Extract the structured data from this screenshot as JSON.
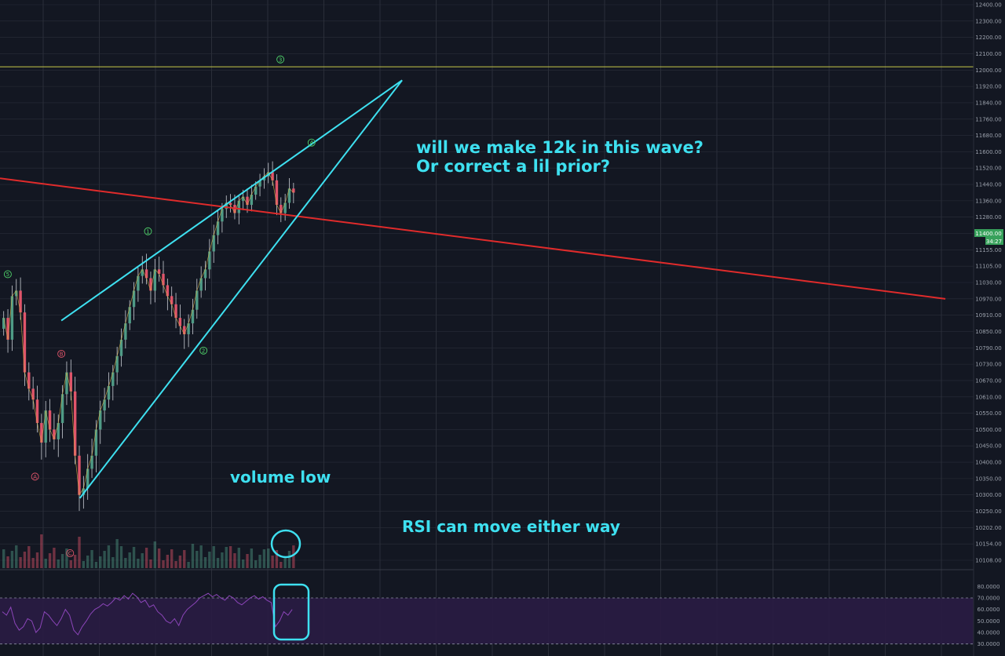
{
  "chart_data": [
    {
      "type": "candlestick",
      "pane": "price",
      "ylim": [
        10080,
        12400
      ],
      "y_ticks": [
        "10108.00",
        "10154.00",
        "10202.00",
        "10250.00",
        "10300.00",
        "10350.00",
        "10400.00",
        "10450.00",
        "10500.00",
        "10550.00",
        "10610.00",
        "10670.00",
        "10730.00",
        "10790.00",
        "10850.00",
        "10910.00",
        "10970.00",
        "11030.00",
        "11105.00",
        "11155.00",
        "11205.00",
        "11280.00",
        "11360.00",
        "11440.00",
        "11520.00",
        "11600.00",
        "11680.00",
        "11760.00",
        "11840.00",
        "11920.00",
        "12000.00",
        "12100.00",
        "12200.00",
        "12300.00",
        "12400.00"
      ],
      "last_price_label": "11400.00",
      "last_price_value": 11400,
      "countdown_label": "34:27",
      "colors": {
        "up": "#4f9b86",
        "down": "#e0556a",
        "wick": "#c9cdd4",
        "bg": "#131722",
        "grid": "#2a2e39"
      },
      "closes": [
        10900,
        10820,
        10980,
        11000,
        10920,
        10700,
        10640,
        10600,
        10520,
        10460,
        10560,
        10500,
        10470,
        10520,
        10620,
        10700,
        10630,
        10420,
        10300,
        10320,
        10380,
        10420,
        10500,
        10560,
        10600,
        10650,
        10700,
        10760,
        10820,
        10880,
        10940,
        11000,
        11060,
        11090,
        11050,
        11000,
        11090,
        11070,
        11020,
        10980,
        10950,
        10900,
        10870,
        10840,
        10880,
        10930,
        11000,
        11050,
        11090,
        11150,
        11200,
        11260,
        11320,
        11350,
        11340,
        11300,
        11360,
        11380,
        11340,
        11390,
        11430,
        11460,
        11480,
        11500,
        11460,
        11340,
        11300,
        11350,
        11420,
        11400
      ],
      "annotations": {
        "price_line_12k": 12020,
        "wedge_upper": [
          [
            10890,
            0.063
          ],
          [
            11950,
            0.413
          ]
        ],
        "wedge_lower": [
          [
            10290,
            0.082
          ],
          [
            11660,
            0.32
          ]
        ],
        "red_trendline": [
          [
            11470,
            0.0
          ],
          [
            10970,
            0.971
          ]
        ]
      },
      "wave_labels": [
        {
          "text": "3",
          "price": 12065,
          "i": 0.288,
          "color": "#4fd36a"
        },
        {
          "text": "4",
          "price": 11645,
          "i": 0.32,
          "color": "#4fd36a"
        },
        {
          "text": "1",
          "price": 11215,
          "i": 0.152,
          "color": "#4fd36a"
        },
        {
          "text": "2",
          "price": 10780,
          "i": 0.209,
          "color": "#4fd36a"
        },
        {
          "text": "5",
          "price": 11068,
          "i": 0.008,
          "color": "#4fd36a"
        },
        {
          "text": "B",
          "price": 10768,
          "i": 0.063,
          "color": "#e0556a"
        },
        {
          "text": "A",
          "price": 10356,
          "i": 0.036,
          "color": "#e0556a"
        },
        {
          "text": "C",
          "price": 10128,
          "i": 0.072,
          "color": "#e0556a"
        }
      ],
      "notes": {
        "line1": "will we make 12k in this wave?",
        "line2": "Or correct a lil prior?",
        "volume": "volume low",
        "rsi": "RSI can move either way"
      }
    },
    {
      "type": "line",
      "pane": "rsi",
      "ylim": [
        25,
        85
      ],
      "y_ticks": [
        "80.0000",
        "70.0000",
        "60.0000",
        "50.0000",
        "40.0000",
        "30.0000"
      ],
      "bands": [
        30,
        70
      ],
      "colors": {
        "line": "#8b45b8",
        "fill": "#2a1c44"
      },
      "values": [
        58,
        55,
        62,
        48,
        42,
        45,
        52,
        50,
        40,
        44,
        58,
        55,
        50,
        46,
        52,
        60,
        55,
        42,
        38,
        45,
        50,
        56,
        60,
        62,
        65,
        63,
        66,
        70,
        68,
        72,
        69,
        74,
        71,
        66,
        68,
        62,
        64,
        58,
        55,
        50,
        48,
        52,
        46,
        55,
        60,
        63,
        66,
        70,
        72,
        74,
        71,
        73,
        70,
        68,
        72,
        70,
        66,
        64,
        67,
        70,
        72,
        69,
        71,
        68,
        66,
        45,
        50,
        58,
        55,
        60
      ]
    }
  ]
}
